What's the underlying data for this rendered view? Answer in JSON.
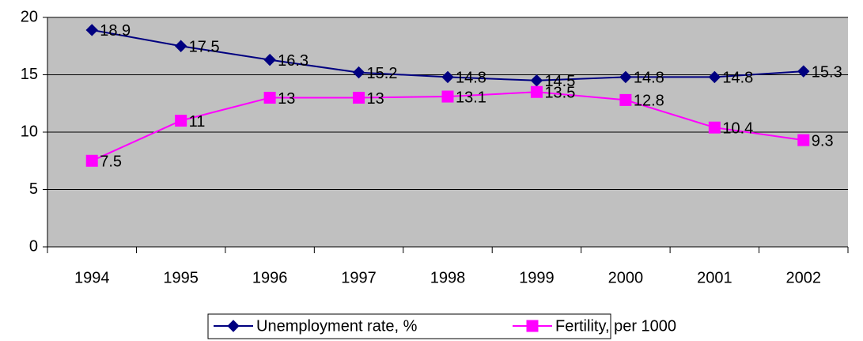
{
  "chart_data": {
    "type": "line",
    "categories": [
      "1994",
      "1995",
      "1996",
      "1997",
      "1998",
      "1999",
      "2000",
      "2001",
      "2002"
    ],
    "series": [
      {
        "name": "Unemployment rate, %",
        "color": "#000080",
        "marker": "diamond",
        "values": [
          18.9,
          17.5,
          16.3,
          15.2,
          14.8,
          14.5,
          14.8,
          14.8,
          15.3
        ]
      },
      {
        "name": "Fertility, per 1000",
        "color": "#ff00ff",
        "marker": "square",
        "values": [
          7.5,
          11,
          13,
          13,
          13.1,
          13.5,
          12.8,
          10.4,
          9.3
        ]
      }
    ],
    "ylim": [
      0,
      20
    ],
    "yticks": [
      0,
      5,
      10,
      15,
      20
    ],
    "grid": true,
    "legend": "bottom",
    "plot_background": "#c0c0c0"
  }
}
